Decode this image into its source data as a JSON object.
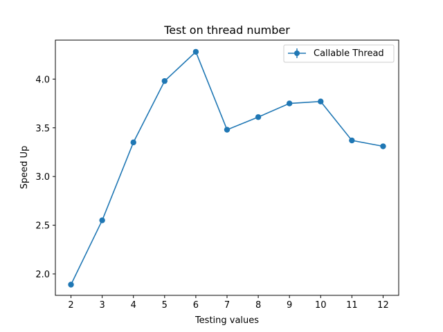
{
  "chart_data": {
    "type": "line",
    "title": "Test on thread number",
    "xlabel": "Testing values",
    "ylabel": "Speed Up",
    "x": [
      2,
      3,
      4,
      5,
      6,
      7,
      8,
      9,
      10,
      11,
      12
    ],
    "xticks": [
      "2",
      "3",
      "4",
      "5",
      "6",
      "7",
      "8",
      "9",
      "10",
      "11",
      "12"
    ],
    "yticks": [
      "2.0",
      "2.5",
      "3.0",
      "3.5",
      "4.0"
    ],
    "xlim": [
      1.5,
      12.5
    ],
    "ylim": [
      1.78,
      4.4
    ],
    "grid": false,
    "legend_position": "top-right",
    "series": [
      {
        "name": "Callable Thread",
        "color": "#1f77b4",
        "marker": "circle",
        "values": [
          1.89,
          2.55,
          3.35,
          3.98,
          4.28,
          3.48,
          3.61,
          3.75,
          3.77,
          3.37,
          3.31
        ]
      }
    ]
  }
}
